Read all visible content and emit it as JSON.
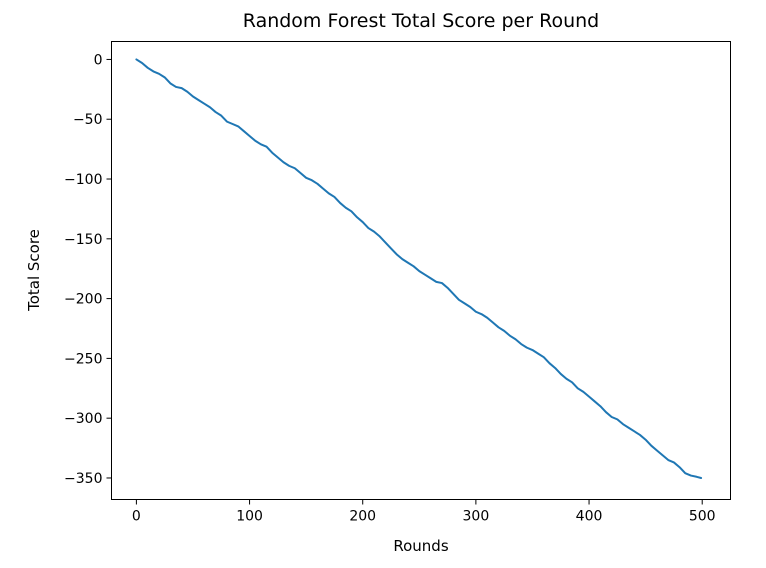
{
  "chart_data": {
    "type": "line",
    "title": "Random Forest Total Score per Round",
    "xlabel": "Rounds",
    "ylabel": "Total Score",
    "xlim": [
      -22,
      525
    ],
    "ylim": [
      -368,
      15
    ],
    "xticks": [
      0,
      100,
      200,
      300,
      400,
      500
    ],
    "yticks": [
      0,
      -50,
      -100,
      -150,
      -200,
      -250,
      -300,
      -350
    ],
    "xtick_labels": [
      "0",
      "100",
      "200",
      "300",
      "400",
      "500"
    ],
    "ytick_labels": [
      "0",
      "−50",
      "−100",
      "−150",
      "−200",
      "−250",
      "−300",
      "−350"
    ],
    "grid": false,
    "series": [
      {
        "color": "#1f77b4",
        "x": [
          0,
          5,
          10,
          15,
          20,
          25,
          30,
          35,
          40,
          45,
          50,
          55,
          60,
          65,
          70,
          75,
          80,
          85,
          90,
          95,
          100,
          105,
          110,
          115,
          120,
          125,
          130,
          135,
          140,
          145,
          150,
          155,
          160,
          165,
          170,
          175,
          180,
          185,
          190,
          195,
          200,
          205,
          210,
          215,
          220,
          225,
          230,
          235,
          240,
          245,
          250,
          255,
          260,
          265,
          270,
          275,
          280,
          285,
          290,
          295,
          300,
          305,
          310,
          315,
          320,
          325,
          330,
          335,
          340,
          345,
          350,
          355,
          360,
          365,
          370,
          375,
          380,
          385,
          390,
          395,
          400,
          405,
          410,
          415,
          420,
          425,
          430,
          435,
          440,
          445,
          450,
          455,
          460,
          465,
          470,
          475,
          480,
          485,
          490,
          495,
          499
        ],
        "y": [
          0,
          -3,
          -7,
          -10,
          -12,
          -15,
          -20,
          -23,
          -24,
          -27,
          -31,
          -34,
          -37,
          -40,
          -44,
          -47,
          -52,
          -54,
          -56,
          -60,
          -64,
          -68,
          -71,
          -73,
          -78,
          -82,
          -86,
          -89,
          -91,
          -95,
          -99,
          -101,
          -104,
          -108,
          -112,
          -115,
          -120,
          -124,
          -127,
          -132,
          -136,
          -141,
          -144,
          -148,
          -153,
          -158,
          -163,
          -167,
          -170,
          -173,
          -177,
          -180,
          -183,
          -186,
          -187,
          -191,
          -196,
          -201,
          -204,
          -207,
          -211,
          -213,
          -216,
          -220,
          -224,
          -227,
          -231,
          -234,
          -238,
          -241,
          -243,
          -246,
          -249,
          -254,
          -258,
          -263,
          -267,
          -270,
          -275,
          -278,
          -282,
          -286,
          -290,
          -295,
          -299,
          -301,
          -305,
          -308,
          -311,
          -314,
          -318,
          -323,
          -327,
          -331,
          -335,
          -337,
          -341,
          -346,
          -348,
          -349,
          -350
        ]
      }
    ]
  }
}
